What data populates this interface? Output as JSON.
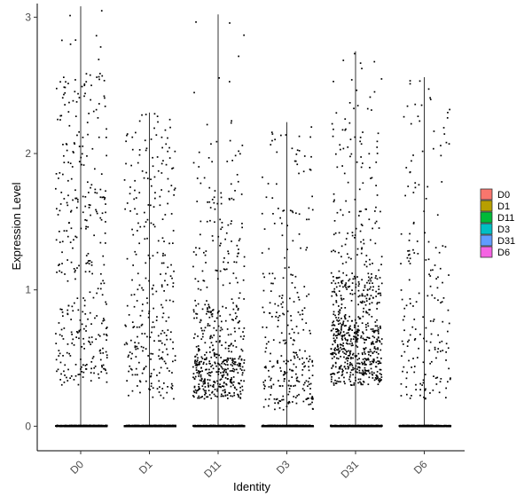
{
  "chart_data": {
    "type": "scatter",
    "subtype": "violin-jitter",
    "title": "",
    "xlabel": "Identity",
    "ylabel": "Expression Level",
    "categories": [
      "D0",
      "D1",
      "D11",
      "D3",
      "D31",
      "D6"
    ],
    "ylim": [
      -0.18,
      3.1
    ],
    "yticks": [
      0,
      1,
      2,
      3
    ],
    "grid": false,
    "legend": {
      "position": "right",
      "entries": [
        {
          "name": "D0",
          "color": "#F8766D"
        },
        {
          "name": "D1",
          "color": "#B79F00"
        },
        {
          "name": "D11",
          "color": "#00BA38"
        },
        {
          "name": "D3",
          "color": "#00BFC4"
        },
        {
          "name": "D31",
          "color": "#619CFF"
        },
        {
          "name": "D6",
          "color": "#F564E3"
        }
      ]
    },
    "series": [
      {
        "category": "D0",
        "max": 3.08,
        "zero_cells": 650,
        "bands": [
          [
            0.3,
            0.9,
            140
          ],
          [
            0.9,
            1.5,
            70
          ],
          [
            1.5,
            2.2,
            90
          ],
          [
            2.2,
            2.6,
            50
          ],
          [
            2.6,
            3.05,
            8
          ]
        ]
      },
      {
        "category": "D1",
        "max": 2.3,
        "zero_cells": 650,
        "bands": [
          [
            0.2,
            0.8,
            130
          ],
          [
            0.8,
            1.4,
            70
          ],
          [
            1.4,
            1.9,
            55
          ],
          [
            1.9,
            2.3,
            40
          ]
        ]
      },
      {
        "category": "D11",
        "max": 3.02,
        "zero_cells": 700,
        "bands": [
          [
            0.2,
            0.5,
            280
          ],
          [
            0.5,
            0.9,
            140
          ],
          [
            0.9,
            1.5,
            70
          ],
          [
            1.5,
            2.1,
            45
          ],
          [
            2.1,
            3.0,
            10
          ]
        ]
      },
      {
        "category": "D3",
        "max": 2.23,
        "zero_cells": 650,
        "bands": [
          [
            0.12,
            0.5,
            140
          ],
          [
            0.5,
            1.0,
            80
          ],
          [
            1.0,
            1.6,
            45
          ],
          [
            1.6,
            2.2,
            30
          ]
        ]
      },
      {
        "category": "D31",
        "max": 2.75,
        "zero_cells": 650,
        "bands": [
          [
            0.3,
            0.75,
            420
          ],
          [
            0.75,
            1.1,
            170
          ],
          [
            1.1,
            1.6,
            70
          ],
          [
            1.6,
            2.2,
            45
          ],
          [
            2.2,
            2.75,
            20
          ]
        ]
      },
      {
        "category": "D6",
        "max": 2.56,
        "zero_cells": 650,
        "bands": [
          [
            0.2,
            0.7,
            80
          ],
          [
            0.7,
            1.2,
            45
          ],
          [
            1.2,
            1.8,
            35
          ],
          [
            1.8,
            2.55,
            30
          ]
        ]
      }
    ]
  }
}
